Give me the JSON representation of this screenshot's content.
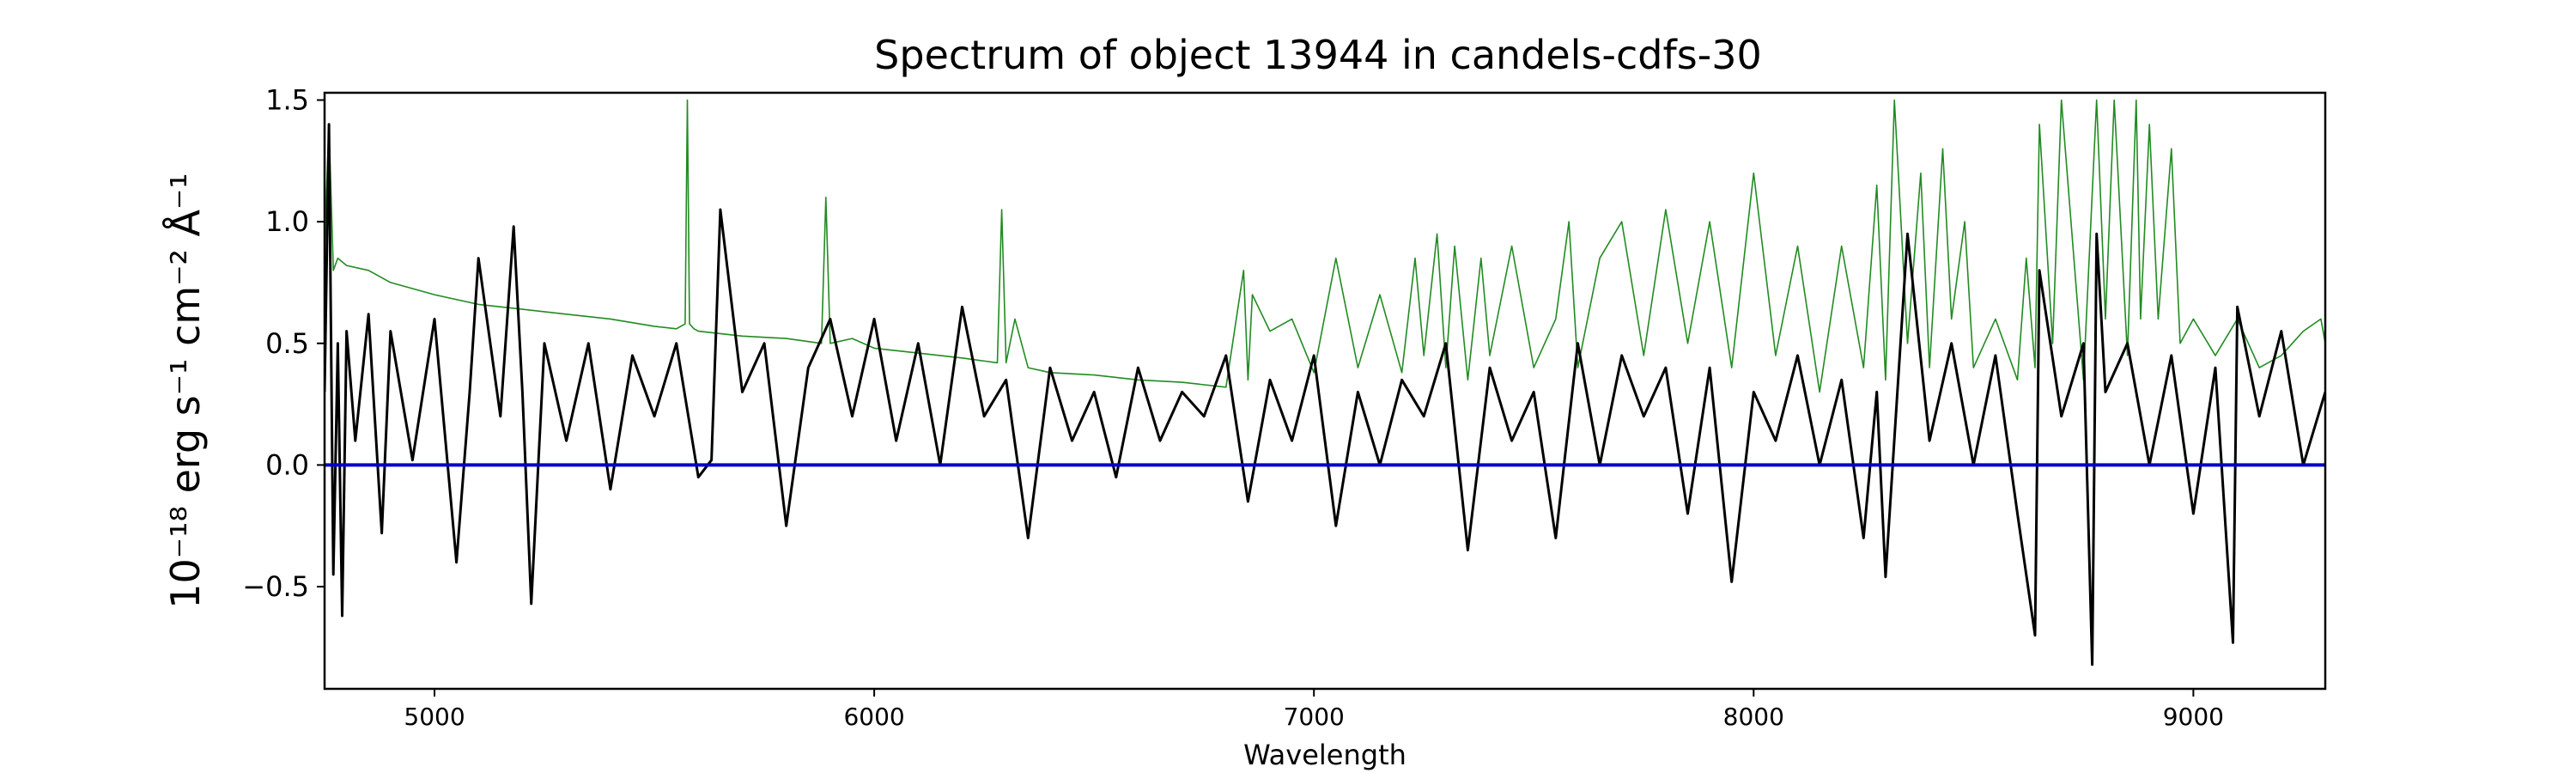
{
  "chart_data": {
    "type": "line",
    "title": "Spectrum of object 13944 in candels-cdfs-30",
    "xlabel": "Wavelength",
    "ylabel": "10⁻¹⁸ erg s⁻¹ cm⁻² Å⁻¹",
    "xlim": [
      4750,
      9300
    ],
    "ylim": [
      -0.92,
      1.53
    ],
    "x_ticks": [
      5000,
      6000,
      7000,
      8000,
      9000
    ],
    "y_ticks": [
      -0.5,
      0.0,
      0.5,
      1.0,
      1.5
    ],
    "y_tick_labels": [
      "−0.5",
      "0.0",
      "0.5",
      "1.0",
      "1.5"
    ],
    "grid": false,
    "legend": "none",
    "series": [
      {
        "color": "#000000",
        "x": [
          4750,
          4760,
          4770,
          4780,
          4790,
          4800,
          4820,
          4850,
          4880,
          4900,
          4950,
          5000,
          5050,
          5080,
          5100,
          5150,
          5180,
          5200,
          5220,
          5250,
          5300,
          5350,
          5400,
          5450,
          5500,
          5550,
          5600,
          5630,
          5650,
          5700,
          5750,
          5800,
          5850,
          5900,
          5950,
          6000,
          6050,
          6100,
          6150,
          6200,
          6250,
          6300,
          6350,
          6400,
          6450,
          6500,
          6550,
          6600,
          6650,
          6700,
          6750,
          6800,
          6850,
          6900,
          6950,
          7000,
          7050,
          7100,
          7150,
          7200,
          7250,
          7300,
          7350,
          7400,
          7450,
          7500,
          7550,
          7600,
          7650,
          7700,
          7750,
          7800,
          7850,
          7900,
          7950,
          8000,
          8050,
          8100,
          8150,
          8200,
          8250,
          8280,
          8300,
          8350,
          8400,
          8450,
          8500,
          8550,
          8600,
          8640,
          8650,
          8700,
          8750,
          8770,
          8780,
          8800,
          8850,
          8900,
          8950,
          9000,
          9050,
          9090,
          9100,
          9150,
          9200,
          9250,
          9300
        ],
        "values": [
          0.3,
          1.4,
          -0.45,
          0.5,
          -0.62,
          0.55,
          0.1,
          0.62,
          -0.28,
          0.55,
          0.02,
          0.6,
          -0.4,
          0.3,
          0.85,
          0.2,
          0.98,
          0.3,
          -0.57,
          0.5,
          0.1,
          0.5,
          -0.1,
          0.45,
          0.2,
          0.5,
          -0.05,
          0.02,
          1.05,
          0.3,
          0.5,
          -0.25,
          0.4,
          0.6,
          0.2,
          0.6,
          0.1,
          0.5,
          0.0,
          0.65,
          0.2,
          0.35,
          -0.3,
          0.4,
          0.1,
          0.3,
          -0.05,
          0.4,
          0.1,
          0.3,
          0.2,
          0.45,
          -0.15,
          0.35,
          0.1,
          0.45,
          -0.25,
          0.3,
          0.0,
          0.35,
          0.2,
          0.5,
          -0.35,
          0.4,
          0.1,
          0.3,
          -0.3,
          0.5,
          0.0,
          0.45,
          0.2,
          0.4,
          -0.2,
          0.4,
          -0.48,
          0.3,
          0.1,
          0.45,
          0.0,
          0.35,
          -0.3,
          0.3,
          -0.46,
          0.95,
          0.1,
          0.5,
          0.0,
          0.45,
          -0.2,
          -0.7,
          0.8,
          0.2,
          0.5,
          -0.82,
          0.95,
          0.3,
          0.5,
          0.0,
          0.45,
          -0.2,
          0.4,
          -0.73,
          0.65,
          0.2,
          0.55,
          0.0,
          0.3
        ]
      },
      {
        "color": "#228b22",
        "x": [
          4750,
          4760,
          4770,
          4780,
          4800,
          4850,
          4900,
          5000,
          5100,
          5200,
          5300,
          5400,
          5500,
          5550,
          5570,
          5575,
          5580,
          5590,
          5600,
          5700,
          5800,
          5880,
          5890,
          5900,
          5950,
          6000,
          6100,
          6200,
          6280,
          6290,
          6300,
          6320,
          6350,
          6400,
          6500,
          6600,
          6700,
          6800,
          6840,
          6850,
          6860,
          6900,
          6950,
          7000,
          7050,
          7100,
          7150,
          7200,
          7230,
          7250,
          7280,
          7300,
          7320,
          7350,
          7380,
          7400,
          7450,
          7500,
          7550,
          7580,
          7600,
          7650,
          7700,
          7750,
          7800,
          7850,
          7900,
          7950,
          8000,
          8050,
          8100,
          8150,
          8200,
          8250,
          8280,
          8300,
          8320,
          8350,
          8380,
          8400,
          8430,
          8450,
          8480,
          8500,
          8550,
          8600,
          8620,
          8640,
          8650,
          8680,
          8700,
          8750,
          8780,
          8800,
          8820,
          8850,
          8870,
          8880,
          8900,
          8920,
          8950,
          8970,
          9000,
          9050,
          9100,
          9150,
          9200,
          9250,
          9290,
          9300
        ],
        "values": [
          0.9,
          1.4,
          0.8,
          0.85,
          0.82,
          0.8,
          0.75,
          0.7,
          0.66,
          0.64,
          0.62,
          0.6,
          0.57,
          0.56,
          0.58,
          1.5,
          0.58,
          0.56,
          0.55,
          0.53,
          0.52,
          0.5,
          1.1,
          0.5,
          0.52,
          0.48,
          0.46,
          0.44,
          0.42,
          1.05,
          0.42,
          0.6,
          0.4,
          0.38,
          0.37,
          0.35,
          0.34,
          0.32,
          0.8,
          0.35,
          0.7,
          0.55,
          0.6,
          0.38,
          0.85,
          0.4,
          0.7,
          0.38,
          0.85,
          0.45,
          0.95,
          0.4,
          0.9,
          0.35,
          0.85,
          0.45,
          0.9,
          0.4,
          0.6,
          1.0,
          0.4,
          0.85,
          1.0,
          0.45,
          1.05,
          0.5,
          1.0,
          0.4,
          1.2,
          0.45,
          0.9,
          0.3,
          0.9,
          0.4,
          1.15,
          0.35,
          1.5,
          0.5,
          1.2,
          0.4,
          1.3,
          0.6,
          1.0,
          0.4,
          0.6,
          0.35,
          0.85,
          0.4,
          1.4,
          0.5,
          1.5,
          0.35,
          1.5,
          0.6,
          1.5,
          0.45,
          1.5,
          0.6,
          1.4,
          0.6,
          1.3,
          0.5,
          0.6,
          0.45,
          0.6,
          0.4,
          0.45,
          0.55,
          0.6,
          0.5
        ]
      },
      {
        "color": "#0000cc",
        "x": [
          4750,
          9300
        ],
        "values": [
          0.0,
          0.0
        ]
      }
    ]
  }
}
